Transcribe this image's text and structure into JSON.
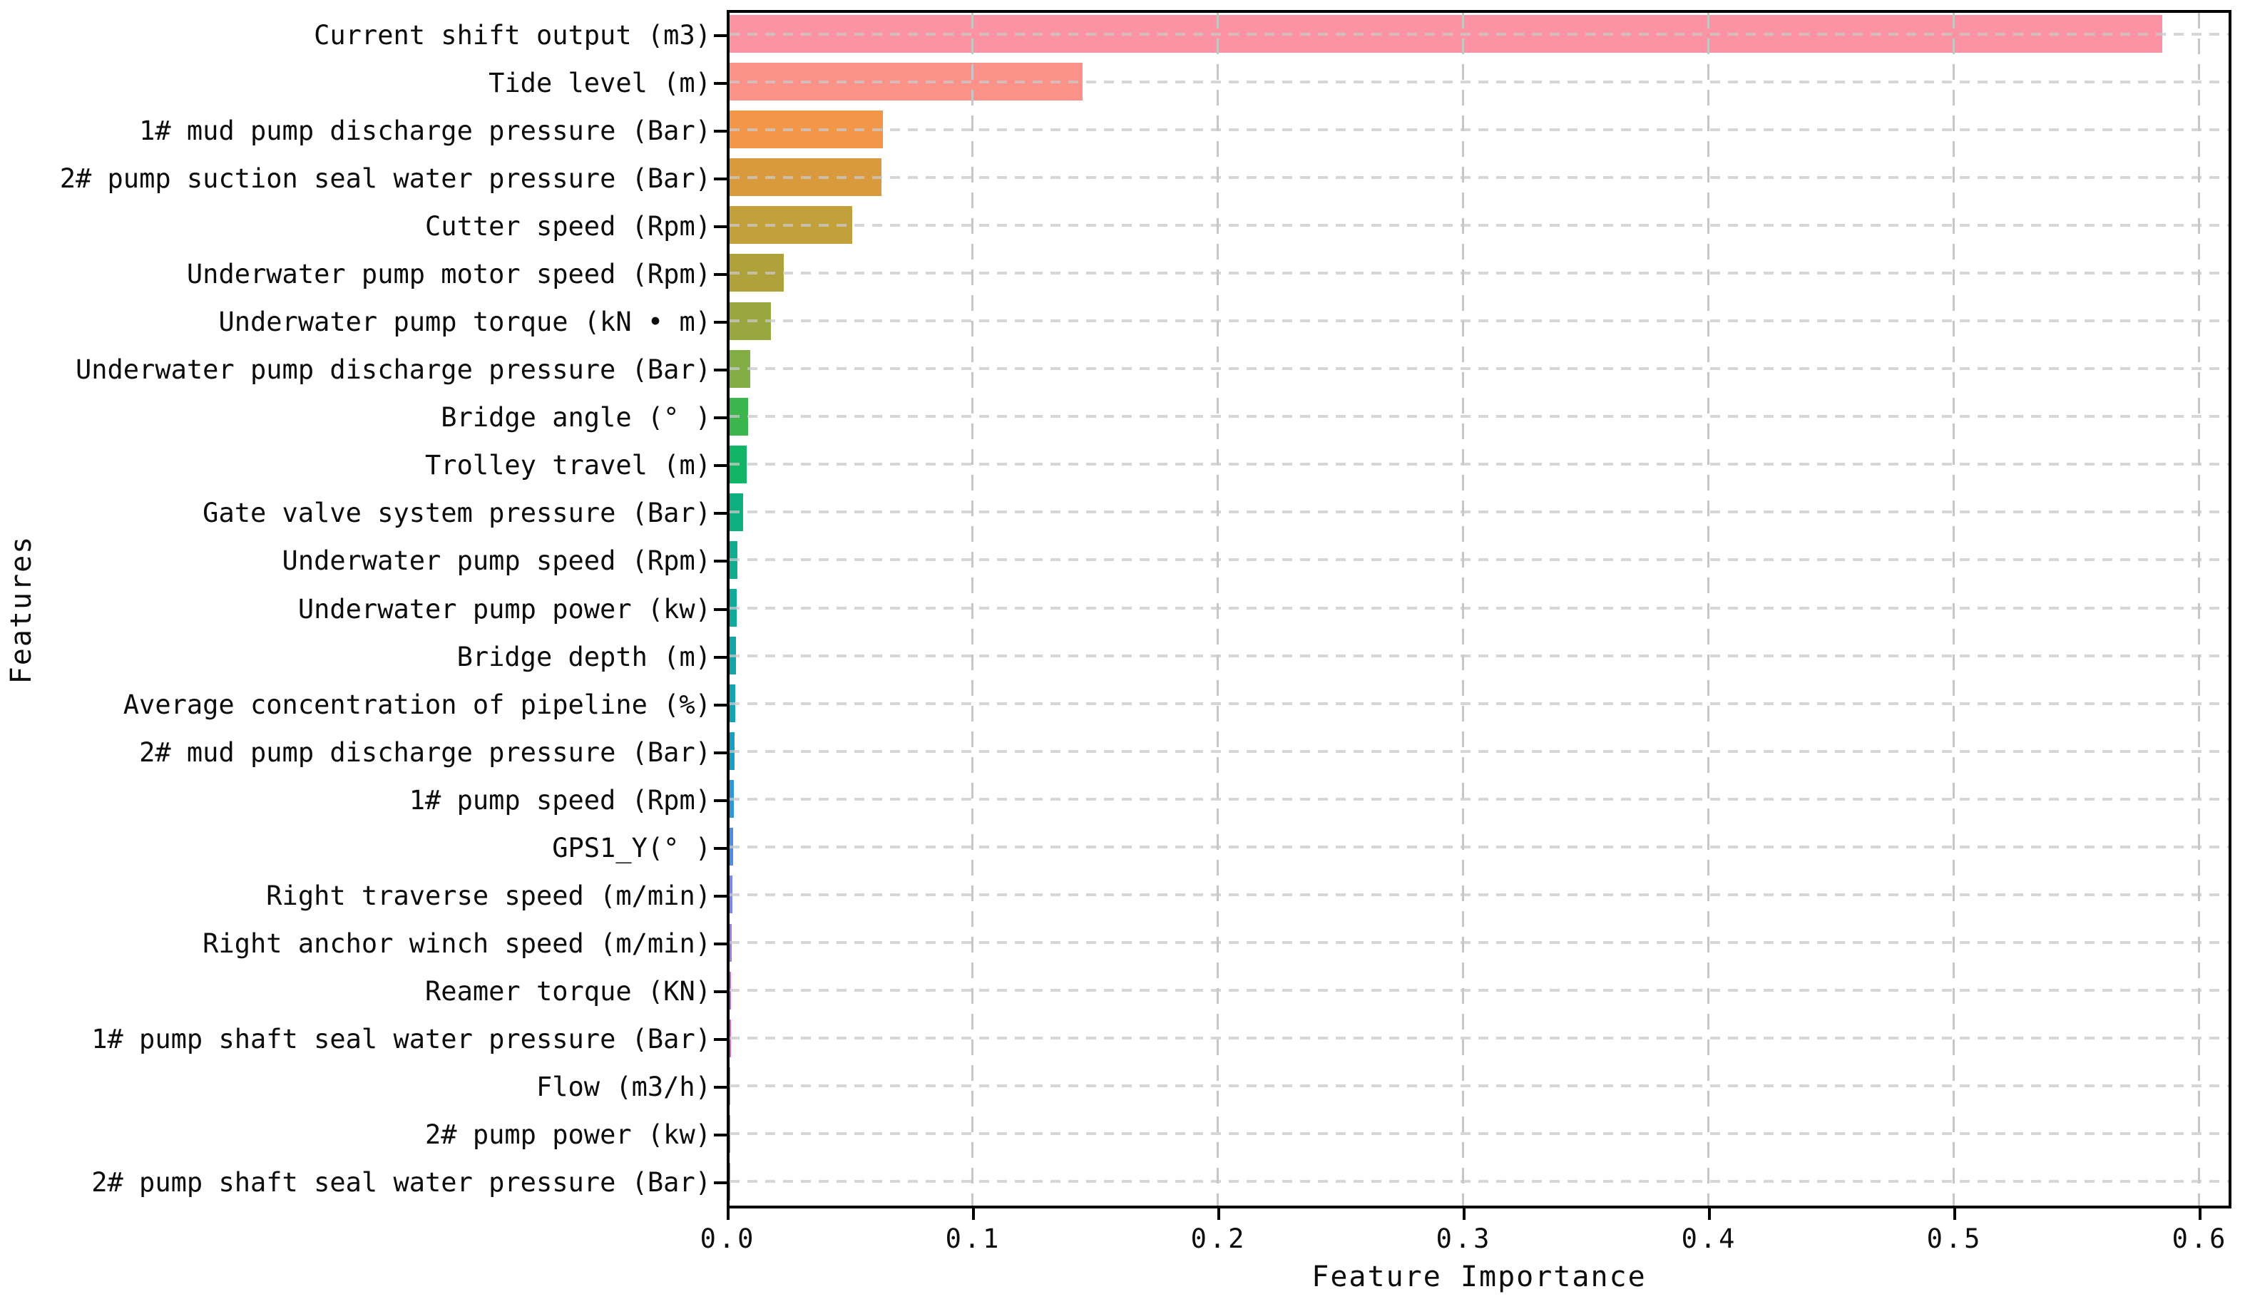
{
  "chart_data": {
    "type": "bar",
    "orientation": "horizontal",
    "title": "",
    "xlabel": "Feature Importance",
    "ylabel": "Features",
    "xlim": [
      0,
      0.6125
    ],
    "grid": true,
    "legend": false,
    "xticks": {
      "values": [
        0.0,
        0.1,
        0.2,
        0.3,
        0.4,
        0.5,
        0.6
      ],
      "labels": [
        "0.0",
        "0.1",
        "0.2",
        "0.3",
        "0.4",
        "0.5",
        "0.6"
      ]
    },
    "categories": [
      "Current shift output (m3)",
      "Tide level (m)",
      "1# mud pump discharge pressure (Bar)",
      "2# pump suction seal water pressure (Bar)",
      "Cutter speed (Rpm)",
      "Underwater pump motor speed (Rpm)",
      "Underwater pump torque (kN • m)",
      "Underwater pump discharge pressure (Bar)",
      "Bridge angle (° )",
      "Trolley travel (m)",
      "Gate valve system pressure (Bar)",
      "Underwater pump speed (Rpm)",
      "Underwater pump power (kw)",
      "Bridge depth (m)",
      "Average concentration of pipeline (%)",
      "2# mud pump discharge pressure (Bar)",
      "1# pump speed (Rpm)",
      "GPS1_Y(° )",
      "Right traverse speed (m/min)",
      "Right anchor winch speed (m/min)",
      "Reamer torque (KN)",
      "1# pump shaft seal water pressure (Bar)",
      "Flow (m3/h)",
      "2# pump power (kw)",
      "2# pump shaft seal water pressure (Bar)"
    ],
    "values": [
      0.584,
      0.144,
      0.0625,
      0.062,
      0.05,
      0.022,
      0.017,
      0.0084,
      0.0076,
      0.007,
      0.0055,
      0.0032,
      0.0029,
      0.0026,
      0.0023,
      0.002,
      0.0017,
      0.0015,
      0.0012,
      0.0008,
      0.0006,
      0.0005,
      0.0004,
      0.0003,
      0.0002
    ],
    "bar_colors": [
      "#fc93a2",
      "#fb9289",
      "#f29648",
      "#d89a3d",
      "#c2a03b",
      "#b0a23a",
      "#98a73f",
      "#82ae45",
      "#3db54d",
      "#10b565",
      "#0daf7e",
      "#0fac90",
      "#10aa9b",
      "#12a7a6",
      "#13a3b1",
      "#169fc0",
      "#3095d8",
      "#4a8de8",
      "#7c86f2",
      "#9f78ee",
      "#c268e0",
      "#da60cd",
      "#e95bba",
      "#f356a4",
      "#f85492"
    ],
    "gridline_color": "#c9c9c9",
    "spine_color": "#000000",
    "background_color": "#ffffff"
  }
}
